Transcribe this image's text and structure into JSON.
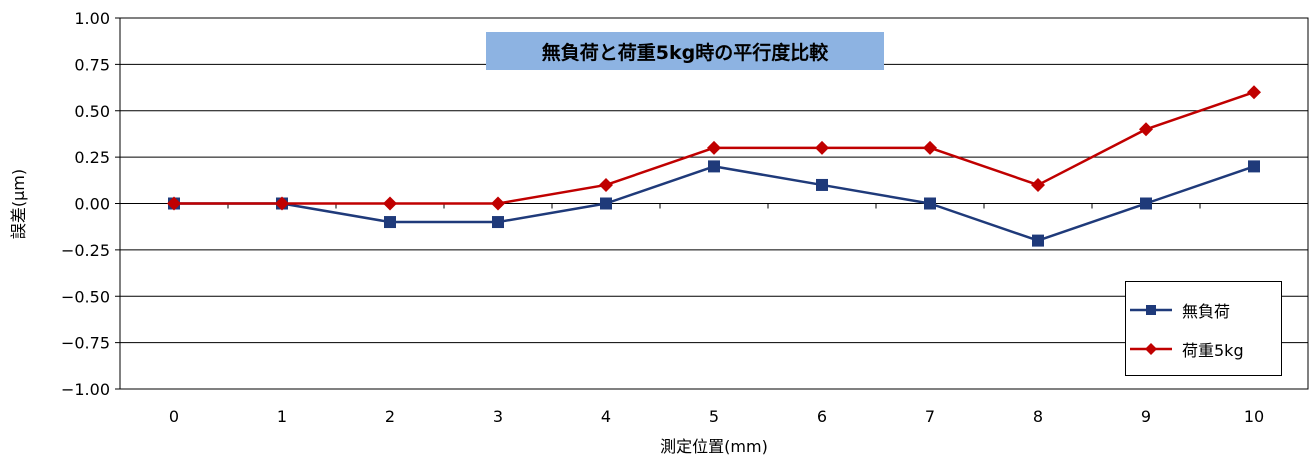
{
  "chart_data": {
    "type": "line",
    "title": "無負荷と荷重5kg時の平行度比較",
    "xlabel": "測定位置(mm)",
    "ylabel": "誤差(μm)",
    "categories": [
      "0",
      "1",
      "2",
      "3",
      "4",
      "5",
      "6",
      "7",
      "8",
      "9",
      "10"
    ],
    "ylim": [
      -1.0,
      1.0
    ],
    "y_ticks": [
      "1.00",
      "0.75",
      "0.50",
      "0.25",
      "0.00",
      "−0.25",
      "−0.50",
      "−0.75",
      "−1.00"
    ],
    "y_tick_values": [
      1.0,
      0.75,
      0.5,
      0.25,
      0.0,
      -0.25,
      -0.5,
      -0.75,
      -1.0
    ],
    "grid": true,
    "legend_position": "bottom-right",
    "series": [
      {
        "name": "無負荷",
        "values": [
          0.0,
          0.0,
          -0.1,
          -0.1,
          0.0,
          0.2,
          0.1,
          0.0,
          -0.2,
          0.0,
          0.2
        ],
        "color": "#1f3a7a",
        "marker": "square"
      },
      {
        "name": "荷重5kg",
        "values": [
          0.0,
          0.0,
          0.0,
          0.0,
          0.1,
          0.3,
          0.3,
          0.3,
          0.1,
          0.4,
          0.6
        ],
        "color": "#c00000",
        "marker": "diamond"
      }
    ]
  }
}
